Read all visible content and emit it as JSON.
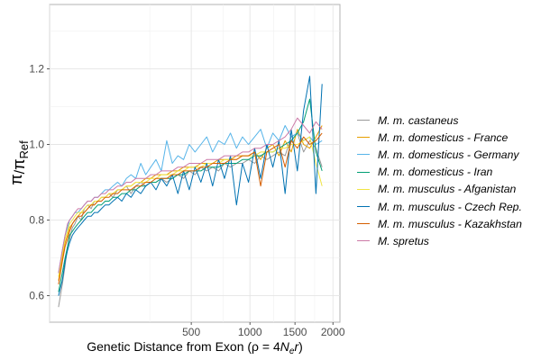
{
  "chart_data": {
    "type": "line",
    "xlabel": "Genetic Distance from Exon (ρ = 4N_e r)",
    "ylabel": "π/π_Ref",
    "x_ticks": [
      500,
      1000,
      1500,
      2000
    ],
    "y_ticks": [
      0.6,
      0.8,
      1.0,
      1.2
    ],
    "x_tick_labels": [
      "500",
      "1000",
      "1500",
      "2000"
    ],
    "y_tick_labels": [
      "0.6",
      "0.8",
      "1.0",
      "1.2"
    ],
    "xlim": [
      0,
      2100
    ],
    "ylim": [
      0.53,
      1.37
    ],
    "x_scale": "sqrt",
    "grid": true,
    "legend_position": "right",
    "x": [
      2,
      4,
      6,
      8,
      10,
      13,
      16,
      20,
      25,
      30,
      36,
      43,
      50,
      58,
      67,
      77,
      88,
      100,
      115,
      130,
      147,
      165,
      185,
      207,
      230,
      255,
      282,
      311,
      342,
      375,
      410,
      447,
      486,
      527,
      570,
      615,
      662,
      711,
      762,
      815,
      870,
      927,
      986,
      1047,
      1110,
      1175,
      1242,
      1311,
      1382,
      1455,
      1530,
      1607,
      1686,
      1767,
      1850
    ],
    "series": [
      {
        "name": "M. m. castaneus",
        "color": "#999999",
        "values": [
          0.57,
          0.63,
          0.68,
          0.73,
          0.75,
          0.78,
          0.79,
          0.81,
          0.8,
          0.83,
          0.84,
          0.83,
          0.85,
          0.85,
          0.86,
          0.86,
          0.87,
          0.86,
          0.88,
          0.88,
          0.89,
          0.87,
          0.89,
          0.9,
          0.89,
          0.9,
          0.9,
          0.91,
          0.9,
          0.91,
          0.92,
          0.91,
          0.93,
          0.92,
          0.94,
          0.93,
          0.94,
          0.93,
          0.95,
          0.94,
          0.95,
          0.95,
          0.96,
          0.95,
          0.97,
          0.96,
          0.97,
          0.98,
          0.97,
          1.02,
          1.03,
          0.98,
          1.01,
          0.99,
          0.94
        ]
      },
      {
        "name": "M. m. domesticus - France",
        "color": "#E69F00",
        "values": [
          0.64,
          0.7,
          0.74,
          0.76,
          0.78,
          0.79,
          0.8,
          0.81,
          0.82,
          0.82,
          0.83,
          0.84,
          0.84,
          0.85,
          0.86,
          0.86,
          0.87,
          0.87,
          0.88,
          0.88,
          0.89,
          0.89,
          0.9,
          0.9,
          0.91,
          0.91,
          0.92,
          0.92,
          0.92,
          0.93,
          0.93,
          0.94,
          0.94,
          0.94,
          0.95,
          0.95,
          0.95,
          0.96,
          0.96,
          0.96,
          0.97,
          0.97,
          0.97,
          0.98,
          0.96,
          0.99,
          1.0,
          0.97,
          1.01,
          0.98,
          1.04,
          1.0,
          0.99,
          1.02,
          1.05
        ]
      },
      {
        "name": "M. m. domesticus - Germany",
        "color": "#56B4E9",
        "values": [
          0.66,
          0.72,
          0.76,
          0.78,
          0.8,
          0.81,
          0.82,
          0.82,
          0.83,
          0.84,
          0.85,
          0.85,
          0.86,
          0.86,
          0.87,
          0.88,
          0.88,
          0.89,
          0.9,
          0.89,
          0.91,
          0.92,
          0.91,
          0.95,
          0.92,
          0.94,
          0.96,
          0.93,
          1.01,
          0.95,
          0.97,
          0.96,
          1.0,
          0.98,
          1.0,
          1.02,
          0.98,
          1.01,
          1.0,
          1.03,
          0.99,
          1.02,
          1.0,
          1.02,
          1.04,
          0.99,
          1.03,
          1.01,
          1.05,
          1.02,
          1.03,
          1.01,
          1.02,
          1.0,
          1.01
        ]
      },
      {
        "name": "M. m. domesticus - Iran",
        "color": "#009E73",
        "values": [
          0.61,
          0.66,
          0.7,
          0.73,
          0.76,
          0.77,
          0.78,
          0.79,
          0.8,
          0.81,
          0.82,
          0.82,
          0.83,
          0.84,
          0.84,
          0.85,
          0.85,
          0.86,
          0.86,
          0.87,
          0.87,
          0.88,
          0.88,
          0.89,
          0.89,
          0.9,
          0.9,
          0.91,
          0.91,
          0.91,
          0.92,
          0.92,
          0.93,
          0.93,
          0.93,
          0.94,
          0.94,
          0.94,
          0.95,
          0.95,
          0.95,
          0.96,
          0.96,
          0.97,
          0.97,
          0.98,
          0.98,
          0.99,
          1.0,
          1.01,
          1.03,
          1.06,
          1.12,
          0.98,
          0.93
        ]
      },
      {
        "name": "M. m. musculus - Afganistan",
        "color": "#F0E442",
        "values": [
          0.65,
          0.71,
          0.75,
          0.77,
          0.79,
          0.8,
          0.81,
          0.82,
          0.82,
          0.83,
          0.84,
          0.84,
          0.85,
          0.85,
          0.86,
          0.86,
          0.87,
          0.87,
          0.88,
          0.88,
          0.89,
          0.89,
          0.9,
          0.9,
          0.9,
          0.91,
          0.91,
          0.92,
          0.92,
          0.92,
          0.93,
          0.93,
          0.94,
          0.94,
          0.94,
          0.95,
          0.95,
          0.95,
          0.96,
          0.96,
          0.96,
          0.97,
          0.97,
          0.97,
          0.98,
          0.98,
          0.98,
          0.99,
          0.99,
          1.0,
          1.0,
          1.01,
          1.02,
          0.95,
          0.89
        ]
      },
      {
        "name": "M. m. musculus - Czech Rep.",
        "color": "#0072B2",
        "values": [
          0.6,
          0.64,
          0.69,
          0.72,
          0.74,
          0.76,
          0.77,
          0.78,
          0.79,
          0.8,
          0.81,
          0.81,
          0.82,
          0.82,
          0.83,
          0.84,
          0.84,
          0.85,
          0.86,
          0.85,
          0.87,
          0.86,
          0.88,
          0.87,
          0.89,
          0.9,
          0.88,
          0.91,
          0.89,
          0.92,
          0.87,
          0.93,
          0.88,
          0.94,
          0.9,
          0.95,
          0.89,
          0.96,
          0.91,
          0.97,
          0.84,
          0.95,
          0.9,
          0.99,
          0.91,
          1.0,
          0.94,
          1.01,
          0.87,
          1.04,
          0.93,
          1.09,
          1.18,
          0.87,
          1.16
        ]
      },
      {
        "name": "M. m. musculus - Kazakhstan",
        "color": "#D55E00",
        "values": [
          0.63,
          0.69,
          0.73,
          0.75,
          0.77,
          0.79,
          0.8,
          0.81,
          0.81,
          0.82,
          0.83,
          0.84,
          0.84,
          0.85,
          0.85,
          0.86,
          0.86,
          0.87,
          0.87,
          0.88,
          0.88,
          0.88,
          0.89,
          0.89,
          0.9,
          0.9,
          0.91,
          0.91,
          0.91,
          0.92,
          0.92,
          0.93,
          0.93,
          0.93,
          0.94,
          0.94,
          0.95,
          0.95,
          0.95,
          0.96,
          0.96,
          0.97,
          0.97,
          0.98,
          0.89,
          0.98,
          0.99,
          1.0,
          0.94,
          1.01,
          0.99,
          1.02,
          1.0,
          1.01,
          1.03
        ]
      },
      {
        "name": "M. spretus",
        "color": "#CC79A7",
        "values": [
          0.66,
          0.72,
          0.76,
          0.79,
          0.8,
          0.81,
          0.82,
          0.83,
          0.83,
          0.84,
          0.85,
          0.85,
          0.86,
          0.86,
          0.87,
          0.87,
          0.88,
          0.88,
          0.89,
          0.89,
          0.9,
          0.9,
          0.91,
          0.91,
          0.91,
          0.92,
          0.92,
          0.93,
          0.93,
          0.93,
          0.94,
          0.94,
          0.95,
          0.95,
          0.95,
          0.96,
          0.96,
          0.96,
          0.97,
          0.97,
          0.97,
          0.98,
          0.98,
          0.99,
          0.99,
          1.0,
          1.0,
          1.01,
          1.02,
          1.04,
          1.07,
          1.05,
          1.03,
          1.06,
          1.04
        ]
      }
    ]
  }
}
